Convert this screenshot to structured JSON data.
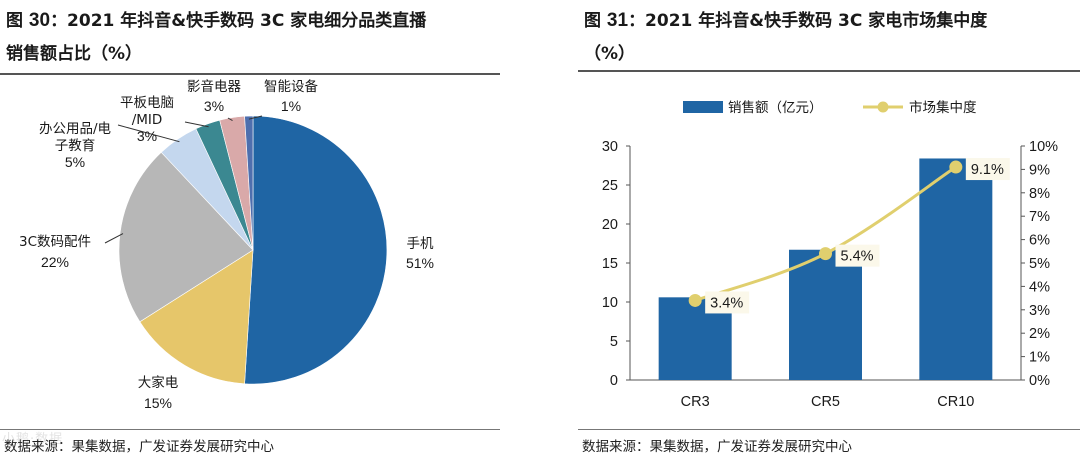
{
  "left": {
    "title_prefix": "图",
    "fig_number": "30",
    "title_line1": "：2021 年抖音&快手数码 3C 家电细分品类直播",
    "title_line2": "销售额占比（%）",
    "source": "数据来源：果集数据，广发证券发展研究中心",
    "watermark": "小鹅·数据"
  },
  "right": {
    "title_prefix": "图",
    "fig_number": "31",
    "title_line1": "：2021 年抖音&快手数码 3C 家电市场集中度",
    "title_line2": "（%）",
    "source": "数据来源：果集数据，广发证券发展研究中心"
  },
  "chart_data": [
    {
      "type": "pie",
      "title": "2021 年抖音&快手数码 3C 家电细分品类直播销售额占比（%）",
      "slices": [
        {
          "label": "手机",
          "value": 51,
          "value_text": "51%",
          "color": "#1f65a4"
        },
        {
          "label": "大家电",
          "value": 15,
          "value_text": "15%",
          "color": "#e6c66a"
        },
        {
          "label": "3C数码配件",
          "value": 22,
          "value_text": "22%",
          "color": "#b7b7b7"
        },
        {
          "label": "办公用品/电子教育",
          "value": 5,
          "value_text": "5%",
          "color": "#c4d7ee"
        },
        {
          "label": "平板电脑/MID",
          "value": 3,
          "value_text": "3%",
          "color": "#3b8891"
        },
        {
          "label": "影音电器",
          "value": 3,
          "value_text": "3%",
          "color": "#d9a9a9"
        },
        {
          "label": "智能设备",
          "value": 1,
          "value_text": "1%",
          "color": "#4e6fae"
        }
      ],
      "label_lines": {
        "phone": [
          "手机",
          "51%"
        ],
        "appliance": [
          "大家电",
          "15%"
        ],
        "accessory": [
          "3C数码配件",
          "22%"
        ],
        "office": [
          "办公用品/电",
          "子教育",
          "5%"
        ],
        "tablet": [
          "平板电脑",
          "/MID",
          "3%"
        ],
        "av": [
          "影音电器",
          "3%"
        ],
        "smart": [
          "智能设备",
          "1%"
        ]
      }
    },
    {
      "type": "bar+line",
      "title": "2021 年抖音&快手数码 3C 家电市场集中度（%）",
      "categories": [
        "CR3",
        "CR5",
        "CR10"
      ],
      "series": [
        {
          "name": "销售额（亿元）",
          "type": "bar",
          "axis": "left",
          "values": [
            10.6,
            16.7,
            28.4
          ],
          "color": "#1f65a4"
        },
        {
          "name": "市场集中度",
          "type": "line",
          "axis": "right",
          "values": [
            3.4,
            5.4,
            9.1
          ],
          "labels": [
            "3.4%",
            "5.4%",
            "9.1%"
          ],
          "color": "#e0cf6e"
        }
      ],
      "y_left": {
        "min": 0,
        "max": 30,
        "ticks": [
          "0",
          "5",
          "10",
          "15",
          "20",
          "25",
          "30"
        ]
      },
      "y_right": {
        "min": 0,
        "max": 10,
        "ticks": [
          "0%",
          "1%",
          "2%",
          "3%",
          "4%",
          "5%",
          "6%",
          "7%",
          "8%",
          "9%",
          "10%"
        ]
      },
      "legend": {
        "position": "top",
        "bar_label": "销售额（亿元）",
        "line_label": "市场集中度"
      }
    }
  ]
}
